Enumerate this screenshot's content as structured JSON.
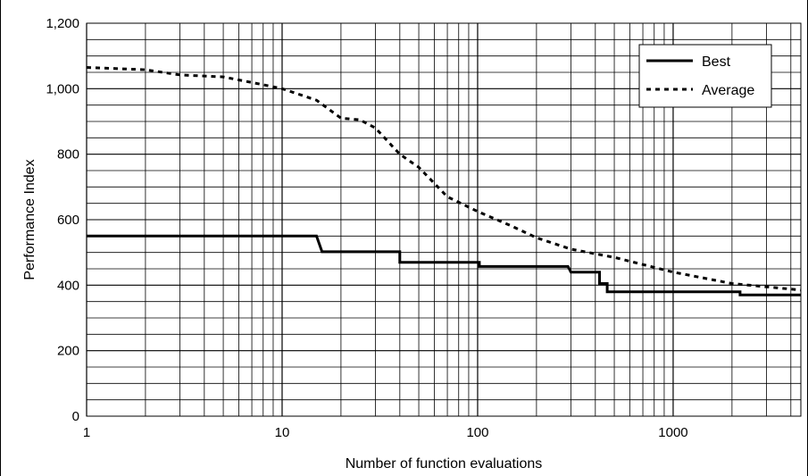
{
  "chart_data": {
    "type": "line",
    "title": "",
    "xlabel": "Number of function evaluations",
    "ylabel": "Performance Index",
    "x_scale": "log",
    "xlim": [
      1,
      4500
    ],
    "ylim": [
      0,
      1200
    ],
    "x_ticks": [
      {
        "value": 1,
        "label": "1"
      },
      {
        "value": 10,
        "label": "10"
      },
      {
        "value": 100,
        "label": "100"
      },
      {
        "value": 1000,
        "label": "1000"
      }
    ],
    "y_ticks": [
      {
        "value": 0,
        "label": "0"
      },
      {
        "value": 200,
        "label": "200"
      },
      {
        "value": 400,
        "label": "400"
      },
      {
        "value": 600,
        "label": "600"
      },
      {
        "value": 800,
        "label": "800"
      },
      {
        "value": 1000,
        "label": "1,000"
      },
      {
        "value": 1200,
        "label": "1,200"
      }
    ],
    "y_minor_step": 50,
    "grid": true,
    "legend_position": "top-right",
    "series": [
      {
        "name": "Best",
        "style": "solid",
        "color": "#000000",
        "x": [
          1,
          15,
          16,
          40,
          40,
          102,
          102,
          290,
          300,
          420,
          420,
          460,
          460,
          2200,
          2200,
          4500
        ],
        "y": [
          550,
          550,
          502,
          502,
          470,
          470,
          457,
          457,
          440,
          440,
          405,
          405,
          380,
          380,
          370,
          370
        ]
      },
      {
        "name": "Average",
        "style": "dashed",
        "color": "#000000",
        "x": [
          1,
          2,
          3,
          5,
          8,
          10,
          15,
          20,
          25,
          30,
          40,
          50,
          70,
          100,
          150,
          200,
          300,
          500,
          1000,
          2000,
          4500
        ],
        "y": [
          1065,
          1058,
          1042,
          1036,
          1012,
          1000,
          965,
          910,
          905,
          880,
          800,
          760,
          670,
          625,
          580,
          545,
          510,
          485,
          440,
          405,
          385
        ]
      }
    ]
  }
}
